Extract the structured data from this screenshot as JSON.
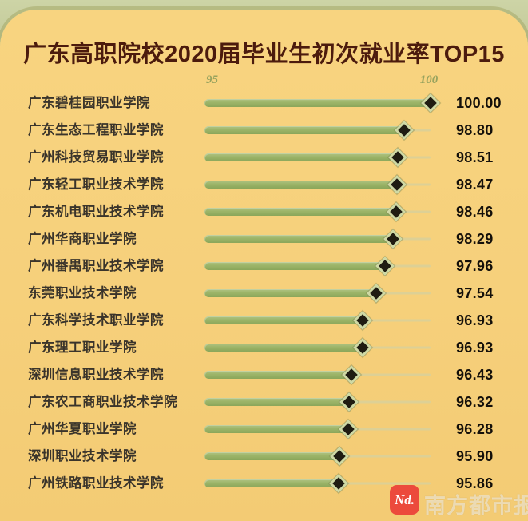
{
  "chart_data": {
    "type": "bar",
    "orientation": "horizontal",
    "title": "广东高职院校2020届毕业生初次就业率TOP15",
    "categories": [
      "广东碧桂园职业学院",
      "广东生态工程职业学院",
      "广州科技贸易职业学院",
      "广东轻工职业技术学院",
      "广东机电职业技术学院",
      "广州华商职业学院",
      "广州番禺职业技术学院",
      "东莞职业技术学院",
      "广东科学技术职业学院",
      "广东理工职业学院",
      "深圳信息职业技术学院",
      "广东农工商职业技术学院",
      "广州华夏职业学院",
      "深圳职业技术学院",
      "广州铁路职业技术学院"
    ],
    "values": [
      100.0,
      98.8,
      98.51,
      98.47,
      98.46,
      98.29,
      97.96,
      97.54,
      96.93,
      96.93,
      96.43,
      96.32,
      96.28,
      95.9,
      95.86
    ],
    "value_labels": [
      "100.00",
      "98.80",
      "98.51",
      "98.47",
      "98.46",
      "98.29",
      "97.96",
      "97.54",
      "96.93",
      "96.93",
      "96.43",
      "96.32",
      "96.28",
      "95.90",
      "95.86"
    ],
    "xlabel": "",
    "ylabel": "",
    "axis": {
      "tick_labels": [
        "95",
        "100"
      ],
      "x_start_value": 89.8,
      "x_end_value": 100,
      "grid": false
    },
    "marker": "diamond",
    "legend": "none"
  },
  "footer": {
    "logo_text": "Nd.",
    "brand": "南方都市报"
  },
  "colors": {
    "card_background": "#f7d17c",
    "band_green": "#c6cd9e",
    "bar_green": "#9cb468",
    "bar_remainder": "#ddd095",
    "diamond_fill": "#1f1c12",
    "diamond_ring": "#cfd9a4",
    "title_color": "#4c1b0d",
    "label_color": "#3a342b",
    "value_color": "#14100a",
    "axis_label_color": "#98a35e",
    "logo_red": "#ec4a3c"
  }
}
